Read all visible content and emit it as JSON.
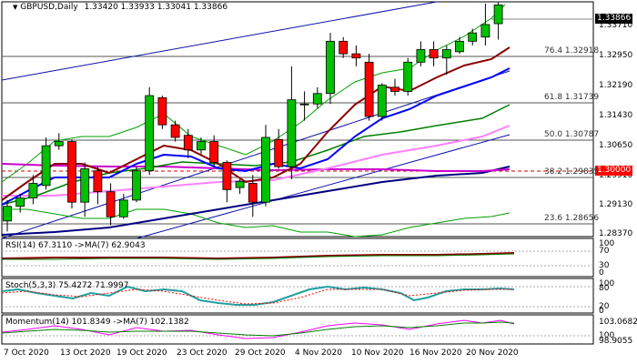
{
  "header": {
    "symbol_timeframe": "GBPUSD,Daily",
    "ohlc": "1.33420 1.33933 1.33041 1.33866"
  },
  "price_axis": {
    "labels": [
      "1.33710",
      "1.32950",
      "1.32190",
      "1.31430",
      "1.30650",
      "1.29910",
      "1.29130",
      "1.28370"
    ],
    "current_price": "1.33866",
    "marker_price": "1.30000"
  },
  "fibonacci": [
    {
      "ratio": "76.4",
      "price": "1.32918"
    },
    {
      "ratio": "61.8",
      "price": "1.31739"
    },
    {
      "ratio": "50.0",
      "price": "1.30787"
    },
    {
      "ratio": "38.2",
      "price": "1.29835"
    },
    {
      "ratio": "23.6",
      "price": "1.28656"
    }
  ],
  "rsi": {
    "label": "RSI(14) 67.3110  ->MA(7) 62.9043",
    "axis": [
      "100",
      "70",
      "30",
      "0"
    ]
  },
  "stoch": {
    "label": "Stoch(5,3,3) 75.4272 71.9997",
    "axis": [
      "100",
      "80",
      "20",
      "0"
    ]
  },
  "momentum": {
    "label": "Momentum(14) 101.8349  ->MA(7) 102.1382",
    "axis": [
      "103.0682",
      "100",
      "98.9055"
    ]
  },
  "dates": [
    "7 Oct 2020",
    "13 Oct 2020",
    "19 Oct 2020",
    "23 Oct 2020",
    "29 Oct 2020",
    "4 Nov 2020",
    "10 Nov 2020",
    "16 Nov 2020",
    "20 Nov 2020"
  ],
  "colors": {
    "bull": "#00c000",
    "bear": "#ff0000",
    "ma_fast": "#8b0000",
    "ma_blue": "#0000ff",
    "ma_green": "#008000",
    "ma_pink": "#ff80ff",
    "ma_navy": "#000080",
    "ma_magenta": "#cc00cc",
    "channel": "#0000aa",
    "bollinger": "#00a000"
  },
  "chart_data": {
    "type": "candlestick",
    "symbol": "GBPUSD",
    "timeframe": "Daily",
    "candles": [
      {
        "o": 1.287,
        "h": 1.292,
        "l": 1.2845,
        "c": 1.2905
      },
      {
        "o": 1.2905,
        "h": 1.2935,
        "l": 1.289,
        "c": 1.2925
      },
      {
        "o": 1.2925,
        "h": 1.298,
        "l": 1.291,
        "c": 1.296
      },
      {
        "o": 1.2955,
        "h": 1.307,
        "l": 1.2945,
        "c": 1.305
      },
      {
        "o": 1.305,
        "h": 1.308,
        "l": 1.304,
        "c": 1.306
      },
      {
        "o": 1.306,
        "h": 1.3065,
        "l": 1.29,
        "c": 1.2915
      },
      {
        "o": 1.2915,
        "h": 1.301,
        "l": 1.288,
        "c": 1.2995
      },
      {
        "o": 1.299,
        "h": 1.3,
        "l": 1.291,
        "c": 1.294
      },
      {
        "o": 1.294,
        "h": 1.296,
        "l": 1.286,
        "c": 1.288
      },
      {
        "o": 1.288,
        "h": 1.2935,
        "l": 1.2875,
        "c": 1.292
      },
      {
        "o": 1.292,
        "h": 1.3,
        "l": 1.2915,
        "c": 1.299
      },
      {
        "o": 1.299,
        "h": 1.319,
        "l": 1.298,
        "c": 1.317
      },
      {
        "o": 1.3165,
        "h": 1.317,
        "l": 1.309,
        "c": 1.31
      },
      {
        "o": 1.31,
        "h": 1.311,
        "l": 1.306,
        "c": 1.307
      },
      {
        "o": 1.3075,
        "h": 1.309,
        "l": 1.302,
        "c": 1.304
      },
      {
        "o": 1.304,
        "h": 1.307,
        "l": 1.303,
        "c": 1.306
      },
      {
        "o": 1.306,
        "h": 1.3075,
        "l": 1.3,
        "c": 1.301
      },
      {
        "o": 1.301,
        "h": 1.3015,
        "l": 1.2915,
        "c": 1.2945
      },
      {
        "o": 1.295,
        "h": 1.297,
        "l": 1.2935,
        "c": 1.2965
      },
      {
        "o": 1.296,
        "h": 1.298,
        "l": 1.288,
        "c": 1.2915
      },
      {
        "o": 1.2915,
        "h": 1.31,
        "l": 1.2905,
        "c": 1.307
      },
      {
        "o": 1.3065,
        "h": 1.309,
        "l": 1.2995,
        "c": 1.3
      },
      {
        "o": 1.3,
        "h": 1.324,
        "l": 1.297,
        "c": 1.316
      },
      {
        "o": 1.315,
        "h": 1.318,
        "l": 1.311,
        "c": 1.315
      },
      {
        "o": 1.315,
        "h": 1.319,
        "l": 1.314,
        "c": 1.3175
      },
      {
        "o": 1.3175,
        "h": 1.332,
        "l": 1.315,
        "c": 1.33
      },
      {
        "o": 1.33,
        "h": 1.331,
        "l": 1.326,
        "c": 1.327
      },
      {
        "o": 1.327,
        "h": 1.329,
        "l": 1.324,
        "c": 1.326
      },
      {
        "o": 1.325,
        "h": 1.327,
        "l": 1.311,
        "c": 1.312
      },
      {
        "o": 1.312,
        "h": 1.32,
        "l": 1.311,
        "c": 1.3195
      },
      {
        "o": 1.319,
        "h": 1.321,
        "l": 1.317,
        "c": 1.318
      },
      {
        "o": 1.318,
        "h": 1.326,
        "l": 1.317,
        "c": 1.325
      },
      {
        "o": 1.325,
        "h": 1.33,
        "l": 1.324,
        "c": 1.328
      },
      {
        "o": 1.328,
        "h": 1.33,
        "l": 1.324,
        "c": 1.326
      },
      {
        "o": 1.326,
        "h": 1.329,
        "l": 1.322,
        "c": 1.328
      },
      {
        "o": 1.3275,
        "h": 1.331,
        "l": 1.327,
        "c": 1.33
      },
      {
        "o": 1.33,
        "h": 1.333,
        "l": 1.329,
        "c": 1.332
      },
      {
        "o": 1.331,
        "h": 1.339,
        "l": 1.329,
        "c": 1.334
      },
      {
        "o": 1.3342,
        "h": 1.3393,
        "l": 1.3304,
        "c": 1.3387
      }
    ],
    "y_range": [
      1.2837,
      1.339
    ]
  }
}
